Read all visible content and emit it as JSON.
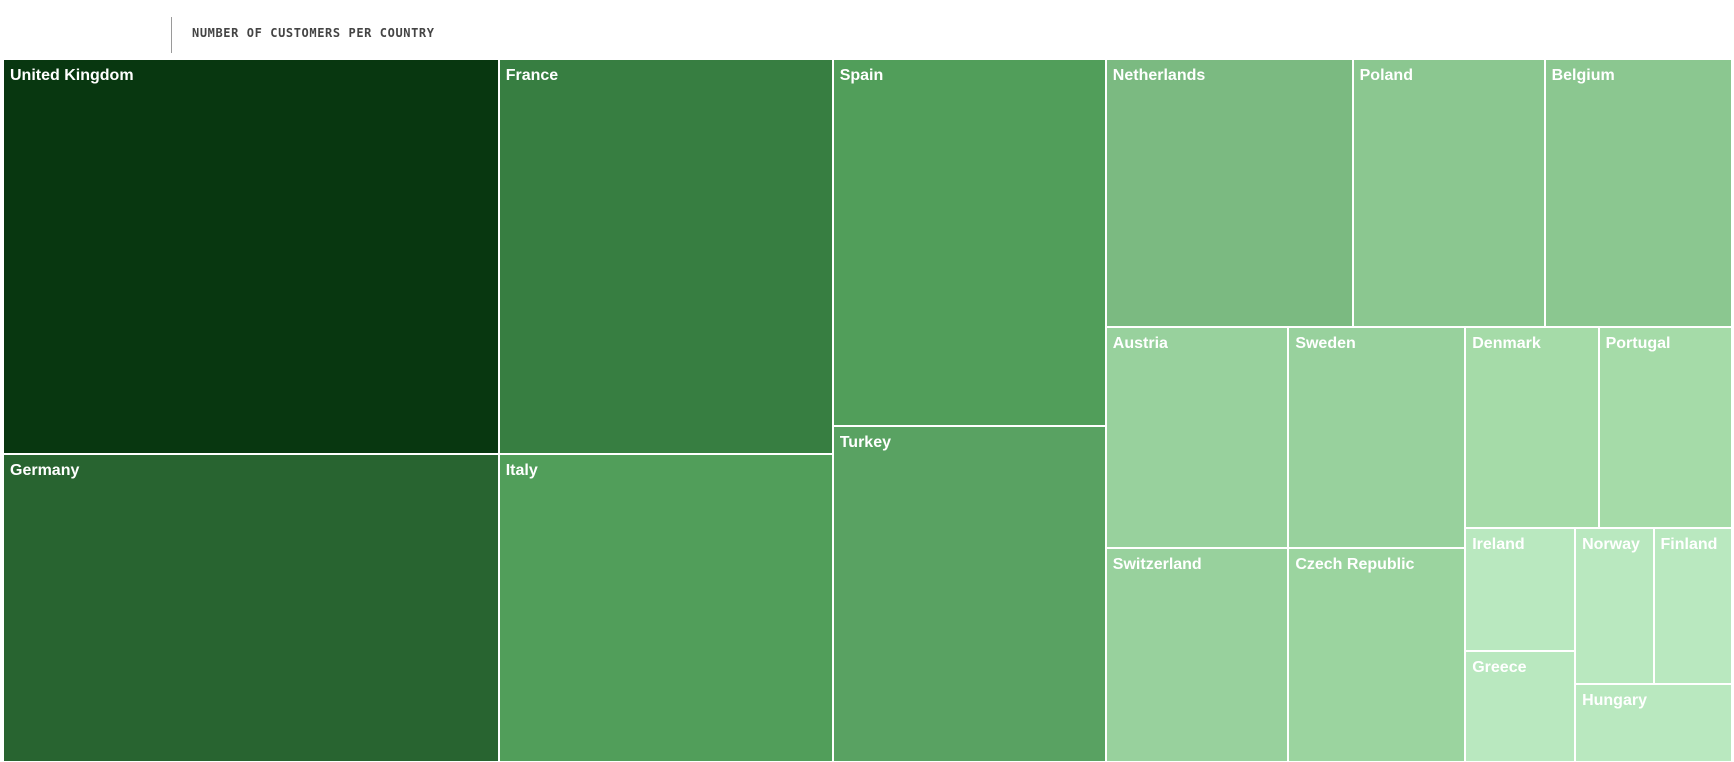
{
  "chart_data": {
    "type": "treemap",
    "title": "NUMBER OF CUSTOMERS PER COUNTRY",
    "categories": [
      "United Kingdom",
      "Germany",
      "France",
      "Italy",
      "Spain",
      "Turkey",
      "Netherlands",
      "Poland",
      "Belgium",
      "Austria",
      "Switzerland",
      "Sweden",
      "Czech Republic",
      "Denmark",
      "Portugal",
      "Ireland",
      "Greece",
      "Norway",
      "Finland",
      "Hungary"
    ],
    "values": [
      160,
      125,
      108,
      84,
      82,
      75,
      54,
      42,
      41,
      33,
      32,
      32,
      31,
      22,
      22,
      11,
      10,
      10,
      10,
      10
    ],
    "colors": [
      "#083710",
      "#286430",
      "#377e41",
      "#519e5a",
      "#519e5a",
      "#59a262",
      "#7bba81",
      "#8bc790",
      "#8bc790",
      "#98d19d",
      "#98d19d",
      "#98d19d",
      "#9bd49f",
      "#a5dba8",
      "#a5dba8",
      "#b9e8bf",
      "#b9e8bf",
      "#b9e8bf",
      "#b9e8bf",
      "#b9e8bf"
    ]
  }
}
